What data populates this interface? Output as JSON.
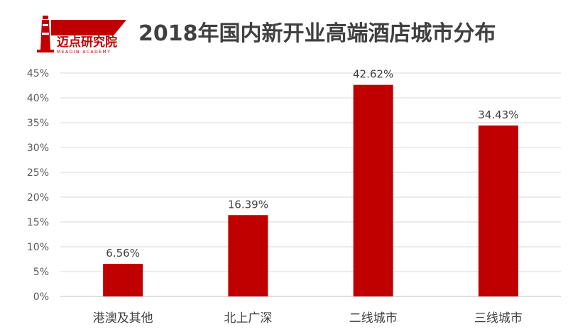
{
  "brand": {
    "logo_text": "迈点研究院",
    "logo_subtext": "MEADIN ACADEMY"
  },
  "chart_data": {
    "type": "bar",
    "title": "2018年国内新开业高端酒店城市分布",
    "categories": [
      "港澳及其他",
      "北上广深",
      "二线城市",
      "三线城市"
    ],
    "values": [
      6.56,
      16.39,
      42.62,
      34.43
    ],
    "data_labels": [
      "6.56%",
      "16.39%",
      "42.62%",
      "34.43%"
    ],
    "ylim": [
      0,
      45
    ],
    "yticks": [
      0,
      5,
      10,
      15,
      20,
      25,
      30,
      35,
      40,
      45
    ],
    "ytick_labels": [
      "0%",
      "5%",
      "10%",
      "15%",
      "20%",
      "25%",
      "30%",
      "35%",
      "40%",
      "45%"
    ],
    "xlabel": "",
    "ylabel": "",
    "grid": true,
    "legend": false,
    "bar_color": "#C00000"
  }
}
